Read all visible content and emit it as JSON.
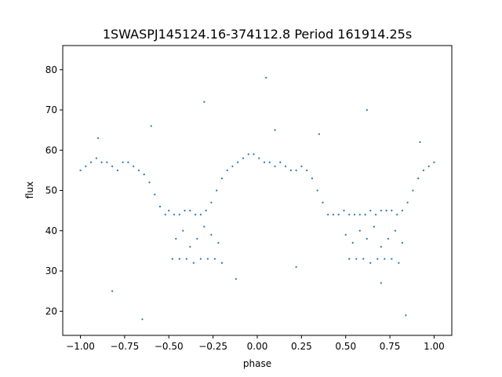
{
  "chart_data": {
    "type": "scatter",
    "title": "1SWASPJ145124.16-374112.8 Period 161914.25s",
    "xlabel": "phase",
    "ylabel": "flux",
    "xlim": [
      -1.1,
      1.1
    ],
    "ylim": [
      14,
      86
    ],
    "xticks": [
      -1.0,
      -0.75,
      -0.5,
      -0.25,
      0.0,
      0.25,
      0.5,
      0.75,
      1.0
    ],
    "xtick_labels": [
      "−1.00",
      "−0.75",
      "−0.50",
      "−0.25",
      "0.00",
      "0.25",
      "0.50",
      "0.75",
      "1.00"
    ],
    "yticks": [
      20,
      30,
      40,
      50,
      60,
      70,
      80
    ],
    "ytick_labels": [
      "20",
      "30",
      "40",
      "50",
      "60",
      "70",
      "80"
    ],
    "grid": false,
    "legend": "none",
    "marker_color": "#1f77b4",
    "series": [
      {
        "x": [
          -1.0,
          -0.97,
          -0.94,
          -0.91,
          -0.88,
          -0.85,
          -0.82,
          -0.79,
          -0.76,
          -0.73,
          -0.7,
          -0.67,
          -0.64,
          -0.61,
          -0.58,
          -0.55,
          -0.52,
          -0.5,
          -0.47,
          -0.44,
          -0.41,
          -0.38,
          -0.35,
          -0.32,
          -0.29,
          -0.26,
          -0.23,
          -0.2,
          -0.17,
          -0.14,
          -0.11,
          -0.08,
          -0.05,
          -0.02,
          0.01,
          0.04,
          0.07,
          0.1,
          0.13,
          0.16,
          0.19,
          0.22,
          0.25,
          0.28,
          0.31,
          0.34,
          0.37,
          0.4,
          0.43,
          0.46,
          0.49,
          0.52,
          0.55,
          0.58,
          0.61,
          0.64,
          0.67,
          0.7,
          0.73,
          0.76,
          0.79,
          0.82,
          0.85,
          0.88,
          0.91,
          0.94,
          0.97,
          1.0,
          -0.48,
          -0.44,
          -0.4,
          -0.36,
          -0.32,
          -0.28,
          -0.24,
          -0.2,
          0.52,
          0.56,
          0.6,
          0.64,
          0.68,
          0.72,
          0.76,
          0.8,
          -0.46,
          -0.42,
          -0.38,
          -0.34,
          -0.3,
          -0.26,
          -0.22,
          0.5,
          0.54,
          0.58,
          0.62,
          0.66,
          0.7,
          0.74,
          0.78,
          0.82,
          -0.9,
          -0.6,
          -0.3,
          0.05,
          0.35,
          0.62,
          0.92,
          -0.82,
          -0.12,
          0.22,
          0.7,
          -0.65,
          0.1,
          0.84
        ],
        "y": [
          55,
          56,
          57,
          58,
          57,
          57,
          56,
          55,
          57,
          57,
          56,
          55,
          54,
          52,
          49,
          46,
          44,
          45,
          44,
          44,
          45,
          45,
          44,
          44,
          45,
          47,
          50,
          53,
          55,
          56,
          57,
          58,
          59,
          59,
          58,
          57,
          57,
          56,
          57,
          56,
          55,
          55,
          56,
          55,
          53,
          50,
          47,
          44,
          44,
          44,
          45,
          44,
          44,
          44,
          44,
          45,
          44,
          45,
          45,
          45,
          44,
          45,
          47,
          50,
          53,
          55,
          56,
          57,
          33,
          33,
          33,
          32,
          33,
          33,
          33,
          32,
          33,
          33,
          33,
          32,
          33,
          33,
          33,
          32,
          38,
          40,
          36,
          38,
          41,
          39,
          37,
          39,
          37,
          40,
          38,
          41,
          36,
          38,
          40,
          37,
          63,
          66,
          72,
          78,
          64,
          70,
          62,
          25,
          28,
          31,
          27,
          18,
          65,
          19
        ]
      }
    ]
  }
}
